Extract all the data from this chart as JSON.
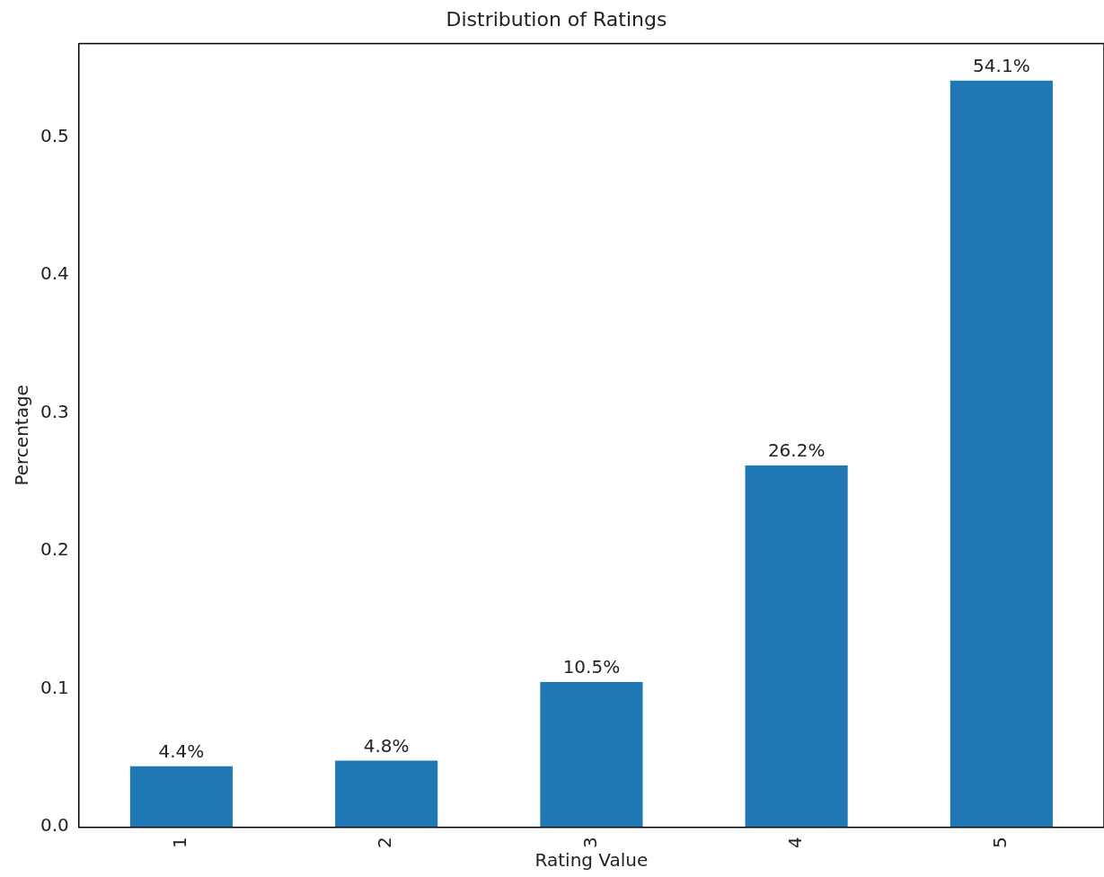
{
  "chart_data": {
    "type": "bar",
    "title": "Distribution of Ratings",
    "xlabel": "Rating Value",
    "ylabel": "Percentage",
    "categories": [
      "1",
      "2",
      "3",
      "4",
      "5"
    ],
    "values": [
      0.044,
      0.048,
      0.105,
      0.262,
      0.541
    ],
    "value_labels": [
      "4.4%",
      "4.8%",
      "10.5%",
      "26.2%",
      "54.1%"
    ],
    "color": "#1f77b4",
    "ylim": [
      0,
      0.568
    ],
    "yticks": [
      {
        "value": 0,
        "label": "0.0"
      },
      0.1,
      0.2,
      0.3,
      0.4,
      0.5
    ],
    "grid": false,
    "legend": false
  }
}
